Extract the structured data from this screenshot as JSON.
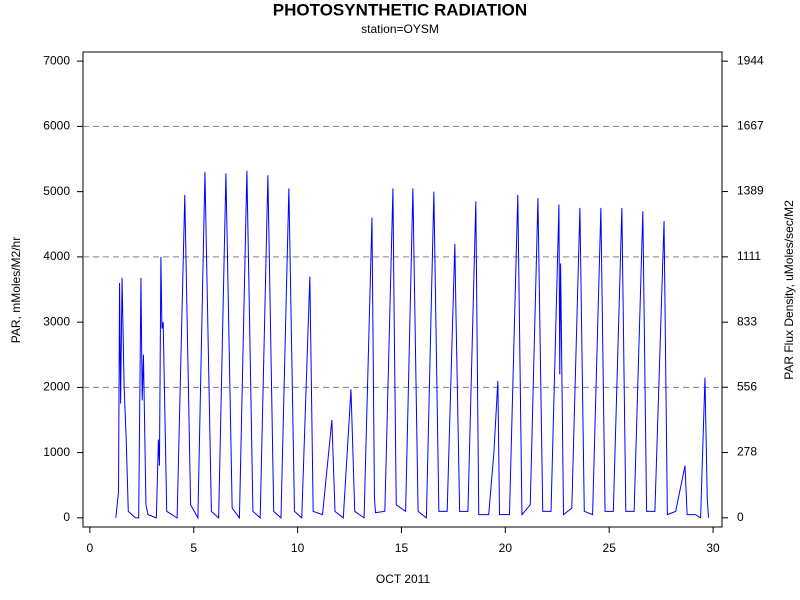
{
  "chart_data": {
    "type": "line",
    "title": "PHOTOSYNTHETIC RADIATION",
    "subtitle": "station=OYSM",
    "x_label": "OCT 2011",
    "y_label": "PAR,  mMoles/M2/hr",
    "y2_label": "PAR Flux Density, uMoles/sec/M2",
    "color": "#0000ff",
    "x": [
      1.25,
      1.38,
      1.43,
      1.48,
      1.55,
      1.65,
      1.75,
      1.85,
      2.2,
      2.35,
      2.46,
      2.52,
      2.58,
      2.7,
      2.8,
      3.2,
      3.3,
      3.35,
      3.42,
      3.47,
      3.53,
      3.7,
      4.2,
      4.57,
      4.85,
      5.2,
      5.54,
      5.85,
      6.2,
      6.55,
      6.85,
      7.2,
      7.56,
      7.85,
      8.2,
      8.57,
      8.85,
      9.2,
      9.58,
      9.85,
      10.2,
      10.59,
      10.75,
      11.2,
      11.65,
      11.8,
      12.2,
      12.57,
      12.75,
      13.2,
      13.58,
      13.7,
      13.75,
      14.2,
      14.59,
      14.65,
      14.75,
      15.2,
      15.55,
      15.8,
      16.2,
      16.56,
      16.8,
      17.2,
      17.57,
      17.62,
      17.8,
      18.2,
      18.58,
      18.72,
      19.2,
      19.45,
      19.64,
      19.72,
      20.2,
      20.6,
      20.8,
      21.2,
      21.57,
      21.8,
      22.2,
      22.58,
      22.62,
      22.66,
      22.8,
      23.2,
      23.59,
      23.8,
      24.2,
      24.6,
      24.8,
      25.2,
      25.61,
      25.8,
      26.2,
      26.62,
      26.8,
      27.2,
      27.64,
      27.8,
      28.2,
      28.65,
      28.75,
      29.15,
      29.4,
      29.61,
      29.72,
      29.78
    ],
    "values": [
      0,
      400,
      3600,
      1750,
      3680,
      2000,
      1200,
      100,
      0,
      0,
      3680,
      1800,
      2500,
      200,
      50,
      0,
      1200,
      800,
      4000,
      2900,
      3000,
      100,
      0,
      4950,
      200,
      0,
      5300,
      100,
      0,
      5280,
      150,
      0,
      5320,
      100,
      0,
      5250,
      100,
      0,
      5050,
      100,
      0,
      3700,
      100,
      50,
      1500,
      100,
      0,
      1970,
      100,
      0,
      4600,
      300,
      80,
      100,
      5050,
      3000,
      200,
      100,
      5050,
      100,
      0,
      5000,
      100,
      100,
      4200,
      3200,
      100,
      100,
      4850,
      50,
      50,
      1000,
      2100,
      50,
      50,
      4950,
      50,
      200,
      4900,
      100,
      100,
      4800,
      2200,
      3900,
      50,
      150,
      4750,
      100,
      50,
      4750,
      100,
      100,
      4750,
      100,
      100,
      4700,
      100,
      100,
      4550,
      50,
      100,
      800,
      50,
      50,
      0,
      2150,
      300,
      0
    ],
    "xlim": [
      -0.33,
      30.43
    ],
    "xticks": [
      0,
      5,
      10,
      15,
      20,
      25,
      30
    ],
    "ylim": [
      -140,
      7140
    ],
    "yticks": [
      0,
      1000,
      2000,
      3000,
      4000,
      5000,
      6000,
      7000
    ],
    "y2lim": [
      -39,
      1983
    ],
    "y2ticks": [
      0,
      278,
      556,
      833,
      1111,
      1389,
      1667,
      1944
    ],
    "ygrid": [
      2000,
      4000,
      6000
    ]
  }
}
